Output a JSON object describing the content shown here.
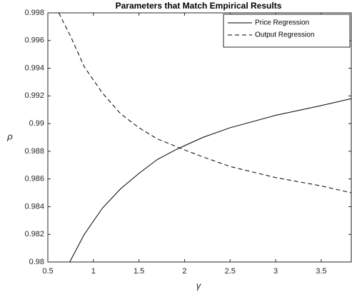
{
  "chart_data": {
    "type": "line",
    "title": "Parameters that Match Empirical Results",
    "x_label": "γ",
    "y_label": "ρ",
    "xlim": [
      0.5,
      3.83
    ],
    "ylim": [
      0.98,
      0.998
    ],
    "xticks": [
      0.5,
      1,
      1.5,
      2,
      2.5,
      3,
      3.5
    ],
    "yticks": [
      0.98,
      0.982,
      0.984,
      0.986,
      0.988,
      0.99,
      0.992,
      0.994,
      0.996,
      0.998
    ],
    "legend_position": "top-right",
    "series": [
      {
        "name": "Price Regression",
        "color": "#000000",
        "dash": "solid",
        "x": [
          0.74,
          0.9,
          1.1,
          1.3,
          1.5,
          1.7,
          1.9,
          2.0,
          2.2,
          2.5,
          3.0,
          3.5,
          3.83
        ],
        "values": [
          0.98,
          0.982,
          0.9839,
          0.9853,
          0.9864,
          0.9874,
          0.9881,
          0.9884,
          0.989,
          0.9897,
          0.9906,
          0.9913,
          0.9918
        ]
      },
      {
        "name": "Output Regression",
        "color": "#000000",
        "dash": "dashed",
        "x": [
          0.62,
          0.75,
          0.9,
          1.1,
          1.3,
          1.5,
          1.7,
          2.0,
          2.2,
          2.5,
          3.0,
          3.5,
          3.83
        ],
        "values": [
          0.998,
          0.9963,
          0.9941,
          0.9922,
          0.9907,
          0.9897,
          0.9889,
          0.9881,
          0.9876,
          0.9869,
          0.9861,
          0.9855,
          0.985
        ]
      }
    ]
  }
}
